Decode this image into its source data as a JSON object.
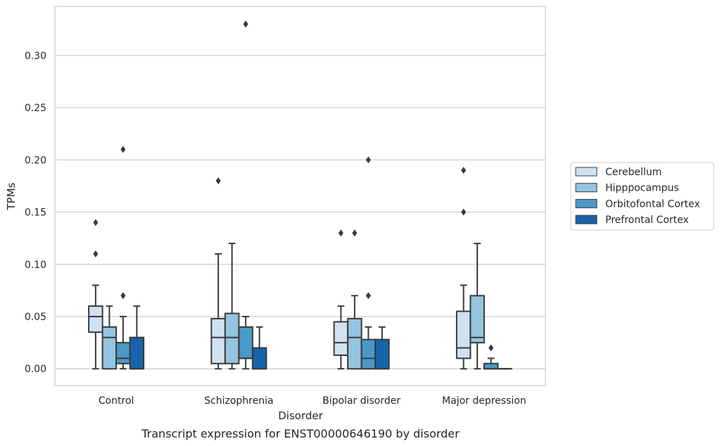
{
  "chart_data": {
    "type": "boxplot",
    "title": "",
    "caption": "Transcript expression for ENST00000646190 by disorder",
    "xlabel": "Disorder",
    "ylabel": "TPMs",
    "ylim": [
      -0.016,
      0.347
    ],
    "yticks": [
      0.0,
      0.05,
      0.1,
      0.15,
      0.2,
      0.25,
      0.3
    ],
    "ytick_labels": [
      "0.00",
      "0.05",
      "0.10",
      "0.15",
      "0.20",
      "0.25",
      "0.30"
    ],
    "grid": "horizontal",
    "legend_position": "right",
    "categories": [
      "Control",
      "Schizophrenia",
      "Bipolar disorder",
      "Major depression"
    ],
    "series": [
      {
        "name": "Cerebellum",
        "color": "#d0e1f2",
        "boxes": [
          {
            "whislo": 0.0,
            "q1": 0.035,
            "med": 0.05,
            "q3": 0.06,
            "whishi": 0.08,
            "fliers": [
              0.11,
              0.14
            ]
          },
          {
            "whislo": 0.0,
            "q1": 0.005,
            "med": 0.03,
            "q3": 0.048,
            "whishi": 0.11,
            "fliers": [
              0.18
            ]
          },
          {
            "whislo": 0.0,
            "q1": 0.013,
            "med": 0.025,
            "q3": 0.045,
            "whishi": 0.06,
            "fliers": [
              0.13
            ]
          },
          {
            "whislo": 0.0,
            "q1": 0.01,
            "med": 0.02,
            "q3": 0.055,
            "whishi": 0.08,
            "fliers": [
              0.15,
              0.19
            ]
          }
        ]
      },
      {
        "name": "Hipppocampus",
        "color": "#94c4df",
        "boxes": [
          {
            "whislo": 0.0,
            "q1": 0.0,
            "med": 0.03,
            "q3": 0.04,
            "whishi": 0.06,
            "fliers": []
          },
          {
            "whislo": 0.0,
            "q1": 0.005,
            "med": 0.03,
            "q3": 0.053,
            "whishi": 0.12,
            "fliers": []
          },
          {
            "whislo": 0.0,
            "q1": 0.0,
            "med": 0.03,
            "q3": 0.048,
            "whishi": 0.07,
            "fliers": [
              0.13
            ]
          },
          {
            "whislo": 0.0,
            "q1": 0.025,
            "med": 0.03,
            "q3": 0.07,
            "whishi": 0.12,
            "fliers": []
          }
        ]
      },
      {
        "name": "Orbitofontal Cortex",
        "color": "#4a98c9",
        "boxes": [
          {
            "whislo": 0.0,
            "q1": 0.005,
            "med": 0.01,
            "q3": 0.025,
            "whishi": 0.05,
            "fliers": [
              0.07,
              0.21
            ]
          },
          {
            "whislo": 0.0,
            "q1": 0.01,
            "med": 0.01,
            "q3": 0.04,
            "whishi": 0.05,
            "fliers": [
              0.33
            ]
          },
          {
            "whislo": 0.0,
            "q1": 0.0,
            "med": 0.01,
            "q3": 0.028,
            "whishi": 0.04,
            "fliers": [
              0.07,
              0.2
            ]
          },
          {
            "whislo": 0.0,
            "q1": 0.0,
            "med": 0.0,
            "q3": 0.005,
            "whishi": 0.01,
            "fliers": [
              0.02
            ]
          }
        ]
      },
      {
        "name": "Prefrontal Cortex",
        "color": "#1764ab",
        "boxes": [
          {
            "whislo": 0.0,
            "q1": 0.0,
            "med": 0.0,
            "q3": 0.03,
            "whishi": 0.06,
            "fliers": []
          },
          {
            "whislo": 0.0,
            "q1": 0.0,
            "med": 0.0,
            "q3": 0.02,
            "whishi": 0.04,
            "fliers": []
          },
          {
            "whislo": 0.0,
            "q1": 0.0,
            "med": 0.0,
            "q3": 0.028,
            "whishi": 0.04,
            "fliers": []
          },
          {
            "whislo": 0.0,
            "q1": 0.0,
            "med": 0.0,
            "q3": 0.0,
            "whishi": 0.0,
            "fliers": []
          }
        ]
      }
    ]
  }
}
